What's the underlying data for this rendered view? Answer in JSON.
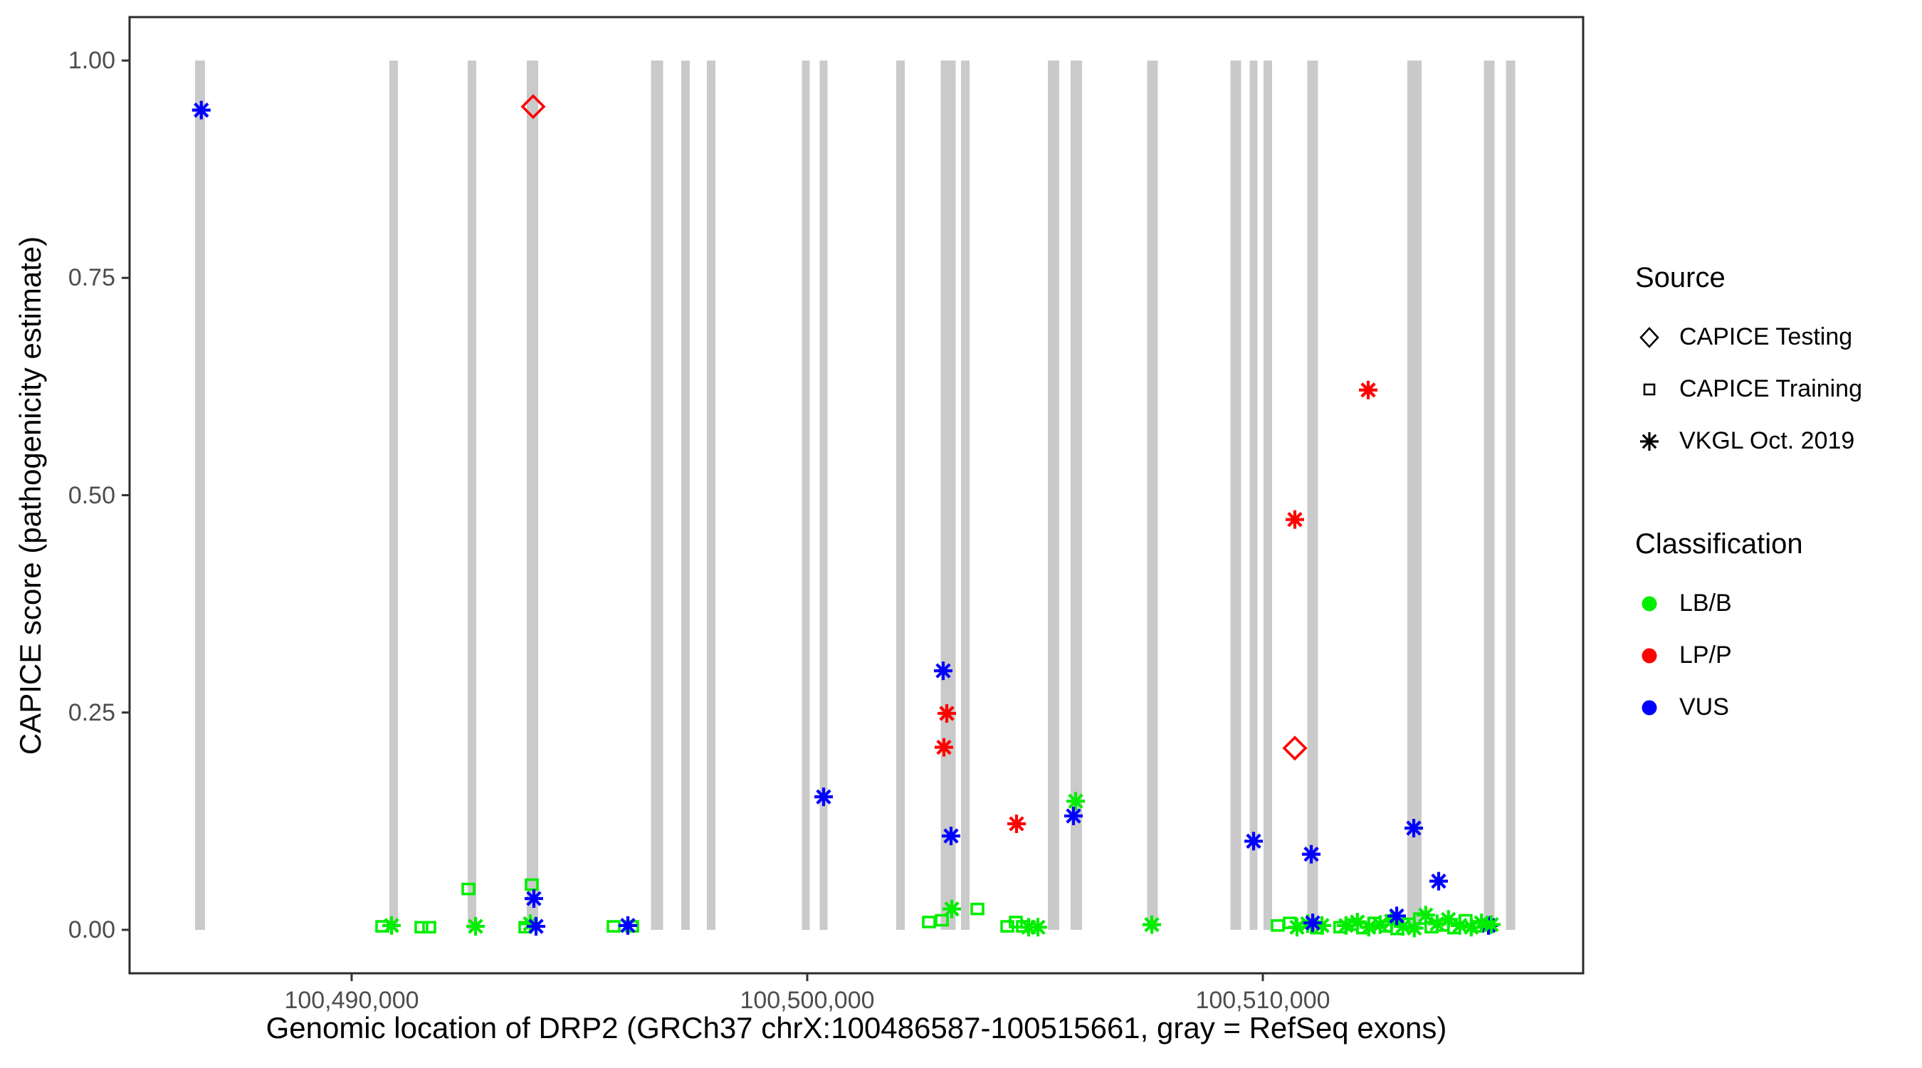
{
  "legend": {
    "source": {
      "title": "Source",
      "items": [
        {
          "label": "CAPICE Testing",
          "marker": "diamond"
        },
        {
          "label": "CAPICE Training",
          "marker": "square"
        },
        {
          "label": "VKGL Oct. 2019",
          "marker": "asterisk"
        }
      ]
    },
    "classification": {
      "title": "Classification",
      "items": [
        {
          "label": "LB/B",
          "color": "#00EE00"
        },
        {
          "label": "LP/P",
          "color": "#FF0000"
        },
        {
          "label": "VUS",
          "color": "#0000FF"
        }
      ]
    }
  },
  "chart_data": {
    "type": "scatter",
    "title": "",
    "xlabel": "Genomic location of DRP2 (GRCh37 chrX:100486587-100515661, gray = RefSeq exons)",
    "ylabel": "CAPICE score (pathogenicity estimate)",
    "x_range": [
      100485125,
      100517031
    ],
    "y_range": [
      -0.05,
      1.05
    ],
    "x_ticks": [
      {
        "value": 100490000,
        "label": "100,490,000"
      },
      {
        "value": 100500000,
        "label": "100,500,000"
      },
      {
        "value": 100510000,
        "label": "100,510,000"
      }
    ],
    "y_ticks": [
      {
        "value": 0.0,
        "label": "0.00"
      },
      {
        "value": 0.25,
        "label": "0.25"
      },
      {
        "value": 0.5,
        "label": "0.50"
      },
      {
        "value": 0.75,
        "label": "0.75"
      },
      {
        "value": 1.0,
        "label": "1.00"
      }
    ],
    "grid": false,
    "legend_position": "right",
    "colors": {
      "LB/B": "#00EE00",
      "LP/P": "#FF0000",
      "VUS": "#0000FF",
      "exon": "#CACACA",
      "axis": "#333333",
      "tick_text": "#4D4D4D"
    },
    "shape_meaning": {
      "diamond": "CAPICE Testing",
      "square": "CAPICE Training",
      "asterisk": "VKGL Oct. 2019"
    },
    "exons_bp": [
      [
        100486672,
        219
      ],
      [
        100490922,
        188
      ],
      [
        100492641,
        188
      ],
      [
        100493969,
        250
      ],
      [
        100496703,
        266
      ],
      [
        100497328,
        188
      ],
      [
        100497891,
        188
      ],
      [
        100499969,
        172
      ],
      [
        100500359,
        172
      ],
      [
        100502047,
        188
      ],
      [
        100503094,
        328
      ],
      [
        100503469,
        188
      ],
      [
        100505406,
        250
      ],
      [
        100505906,
        250
      ],
      [
        100507578,
        234
      ],
      [
        100509406,
        234
      ],
      [
        100509797,
        172
      ],
      [
        100510109,
        188
      ],
      [
        100511094,
        234
      ],
      [
        100513328,
        313
      ],
      [
        100514969,
        234
      ],
      [
        100515438,
        203
      ]
    ],
    "points": [
      [
        100490672,
        0.004,
        "square",
        "LB/B"
      ],
      [
        100491531,
        0.003,
        "square",
        "LB/B"
      ],
      [
        100491703,
        0.003,
        "square",
        "LB/B"
      ],
      [
        100492563,
        0.047,
        "square",
        "LB/B"
      ],
      [
        100493813,
        0.003,
        "square",
        "LB/B"
      ],
      [
        100493953,
        0.052,
        "square",
        "LB/B"
      ],
      [
        100495750,
        0.004,
        "square",
        "LB/B"
      ],
      [
        100496156,
        0.004,
        "square",
        "LB/B"
      ],
      [
        100502672,
        0.009,
        "square",
        "LB/B"
      ],
      [
        100502953,
        0.011,
        "square",
        "LB/B"
      ],
      [
        100503734,
        0.024,
        "square",
        "LB/B"
      ],
      [
        100504391,
        0.004,
        "square",
        "LB/B"
      ],
      [
        100504578,
        0.009,
        "square",
        "LB/B"
      ],
      [
        100504734,
        0.004,
        "square",
        "LB/B"
      ],
      [
        100510328,
        0.005,
        "square",
        "LB/B"
      ],
      [
        100510594,
        0.008,
        "square",
        "LB/B"
      ],
      [
        100511188,
        0.002,
        "square",
        "LB/B"
      ],
      [
        100511700,
        0.003,
        "square",
        "LB/B"
      ],
      [
        100511950,
        0.006,
        "square",
        "LB/B"
      ],
      [
        100512200,
        0.002,
        "square",
        "LB/B"
      ],
      [
        100512450,
        0.008,
        "square",
        "LB/B"
      ],
      [
        100512700,
        0.004,
        "square",
        "LB/B"
      ],
      [
        100512950,
        0.001,
        "square",
        "LB/B"
      ],
      [
        100513200,
        0.007,
        "square",
        "LB/B"
      ],
      [
        100513450,
        0.013,
        "square",
        "LB/B"
      ],
      [
        100513700,
        0.003,
        "square",
        "LB/B"
      ],
      [
        100513950,
        0.005,
        "square",
        "LB/B"
      ],
      [
        100514200,
        0.002,
        "square",
        "LB/B"
      ],
      [
        100514450,
        0.011,
        "square",
        "LB/B"
      ],
      [
        100514700,
        0.004,
        "square",
        "LB/B"
      ],
      [
        100490875,
        0.005,
        "asterisk",
        "LB/B"
      ],
      [
        100492719,
        0.004,
        "asterisk",
        "LB/B"
      ],
      [
        100493922,
        0.007,
        "asterisk",
        "LB/B"
      ],
      [
        100503172,
        0.024,
        "asterisk",
        "LB/B"
      ],
      [
        100504859,
        0.003,
        "asterisk",
        "LB/B"
      ],
      [
        100505063,
        0.003,
        "asterisk",
        "LB/B"
      ],
      [
        100505891,
        0.148,
        "asterisk",
        "LB/B"
      ],
      [
        100507563,
        0.006,
        "asterisk",
        "LB/B"
      ],
      [
        100510750,
        0.003,
        "asterisk",
        "LB/B"
      ],
      [
        100510984,
        0.007,
        "asterisk",
        "LB/B"
      ],
      [
        100511297,
        0.005,
        "asterisk",
        "LB/B"
      ],
      [
        100511825,
        0.005,
        "asterisk",
        "LB/B"
      ],
      [
        100512075,
        0.009,
        "asterisk",
        "LB/B"
      ],
      [
        100512325,
        0.003,
        "asterisk",
        "LB/B"
      ],
      [
        100512575,
        0.006,
        "asterisk",
        "LB/B"
      ],
      [
        100512825,
        0.01,
        "asterisk",
        "LB/B"
      ],
      [
        100513075,
        0.004,
        "asterisk",
        "LB/B"
      ],
      [
        100513325,
        0.002,
        "asterisk",
        "LB/B"
      ],
      [
        100513575,
        0.017,
        "asterisk",
        "LB/B"
      ],
      [
        100513825,
        0.007,
        "asterisk",
        "LB/B"
      ],
      [
        100514075,
        0.012,
        "asterisk",
        "LB/B"
      ],
      [
        100514325,
        0.005,
        "asterisk",
        "LB/B"
      ],
      [
        100514575,
        0.003,
        "asterisk",
        "LB/B"
      ],
      [
        100486700,
        0.943,
        "asterisk",
        "VUS"
      ],
      [
        100494000,
        0.036,
        "asterisk",
        "VUS"
      ],
      [
        100494047,
        0.004,
        "asterisk",
        "VUS"
      ],
      [
        100496063,
        0.005,
        "asterisk",
        "VUS"
      ],
      [
        100500359,
        0.153,
        "asterisk",
        "VUS"
      ],
      [
        100502984,
        0.298,
        "asterisk",
        "VUS"
      ],
      [
        100503156,
        0.108,
        "asterisk",
        "VUS"
      ],
      [
        100505844,
        0.131,
        "asterisk",
        "VUS"
      ],
      [
        100509797,
        0.102,
        "asterisk",
        "VUS"
      ],
      [
        100511063,
        0.087,
        "asterisk",
        "VUS"
      ],
      [
        100511094,
        0.008,
        "asterisk",
        "VUS"
      ],
      [
        100512938,
        0.016,
        "asterisk",
        "VUS"
      ],
      [
        100513313,
        0.117,
        "asterisk",
        "VUS"
      ],
      [
        100513859,
        0.056,
        "asterisk",
        "VUS"
      ],
      [
        100514953,
        0.005,
        "asterisk",
        "VUS"
      ],
      [
        100515016,
        0.006,
        "asterisk",
        "LB/B"
      ],
      [
        100514800,
        0.008,
        "asterisk",
        "LB/B"
      ],
      [
        100503000,
        0.21,
        "asterisk",
        "LP/P"
      ],
      [
        100503063,
        0.249,
        "asterisk",
        "LP/P"
      ],
      [
        100504594,
        0.122,
        "asterisk",
        "LP/P"
      ],
      [
        100510703,
        0.472,
        "asterisk",
        "LP/P"
      ],
      [
        100512313,
        0.621,
        "asterisk",
        "LP/P"
      ],
      [
        100493984,
        0.947,
        "diamond",
        "LP/P"
      ],
      [
        100510703,
        0.209,
        "diamond",
        "LP/P"
      ]
    ]
  }
}
